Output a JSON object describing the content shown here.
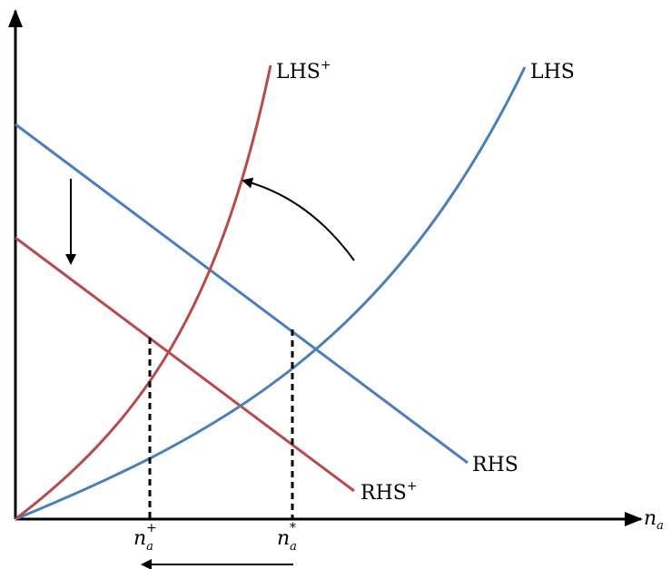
{
  "labels": {
    "lhs_plus": "LHS",
    "lhs_plus_sup": "+",
    "lhs": "LHS",
    "rhs": "RHS",
    "rhs_plus": "RHS",
    "rhs_plus_sup": "+",
    "x_axis": "n",
    "x_axis_sub": "a",
    "n_plus": "n",
    "n_plus_sub": "a",
    "n_plus_sup": "+",
    "n_star": "n",
    "n_star_sub": "a",
    "n_star_sup": "*"
  },
  "colors": {
    "red": "#b84a4a",
    "blue": "#4a7fb8",
    "black": "#000000"
  }
}
